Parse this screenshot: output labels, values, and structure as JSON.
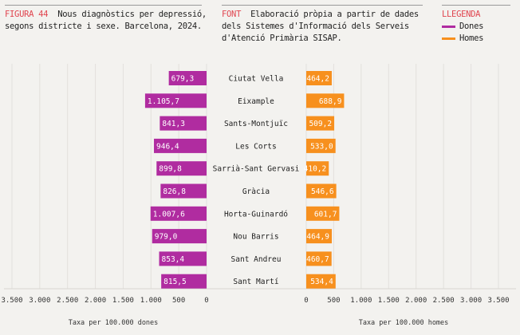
{
  "header": {
    "figure_label": "FIGURA 44",
    "figure_title": "Nous diagnòstics per depressió, segons districte i sexe. Barcelona, 2024.",
    "source_label": "FONT",
    "source_text": "Elaboració pròpia a partir de dades dels Sistemes d'Informació dels Serveis d'Atenció Primària SISAP.",
    "legend_label": "LLEGENDA"
  },
  "colors": {
    "dones": "#b02ca0",
    "homes": "#f7901e",
    "accent": "#e0454f"
  },
  "chart_data": {
    "type": "bar",
    "orientation": "horizontal-butterfly",
    "categories": [
      "Ciutat Vella",
      "Eixample",
      "Sants-Montjuïc",
      "Les Corts",
      "Sarrià-Sant Gervasi",
      "Gràcia",
      "Horta-Guinardó",
      "Nou Barris",
      "Sant Andreu",
      "Sant Martí"
    ],
    "series": [
      {
        "name": "Dones",
        "values": [
          679.3,
          1105.7,
          841.3,
          946.4,
          899.8,
          826.8,
          1007.6,
          979.0,
          853.4,
          815.5
        ],
        "labels": [
          "679,3",
          "1.105,7",
          "841,3",
          "946,4",
          "899,8",
          "826,8",
          "1.007,6",
          "979,0",
          "853,4",
          "815,5"
        ]
      },
      {
        "name": "Homes",
        "values": [
          464.2,
          688.9,
          509.2,
          533.0,
          410.2,
          546.6,
          601.7,
          464.9,
          460.7,
          534.4
        ],
        "labels": [
          "464,2",
          "688,9",
          "509,2",
          "533,0",
          "410,2",
          "546,6",
          "601,7",
          "464,9",
          "460,7",
          "534,4"
        ]
      }
    ],
    "xlim": [
      0,
      3500
    ],
    "tick_values": [
      0,
      500,
      1000,
      1500,
      2000,
      2500,
      3000,
      3500
    ],
    "tick_labels": [
      "0",
      "500",
      "1.000",
      "1.500",
      "2.000",
      "2.500",
      "3.000",
      "3.500"
    ],
    "xlabel_left": "Taxa per 100.000 dones",
    "xlabel_right": "Taxa per 100.000 homes",
    "grid": true
  }
}
